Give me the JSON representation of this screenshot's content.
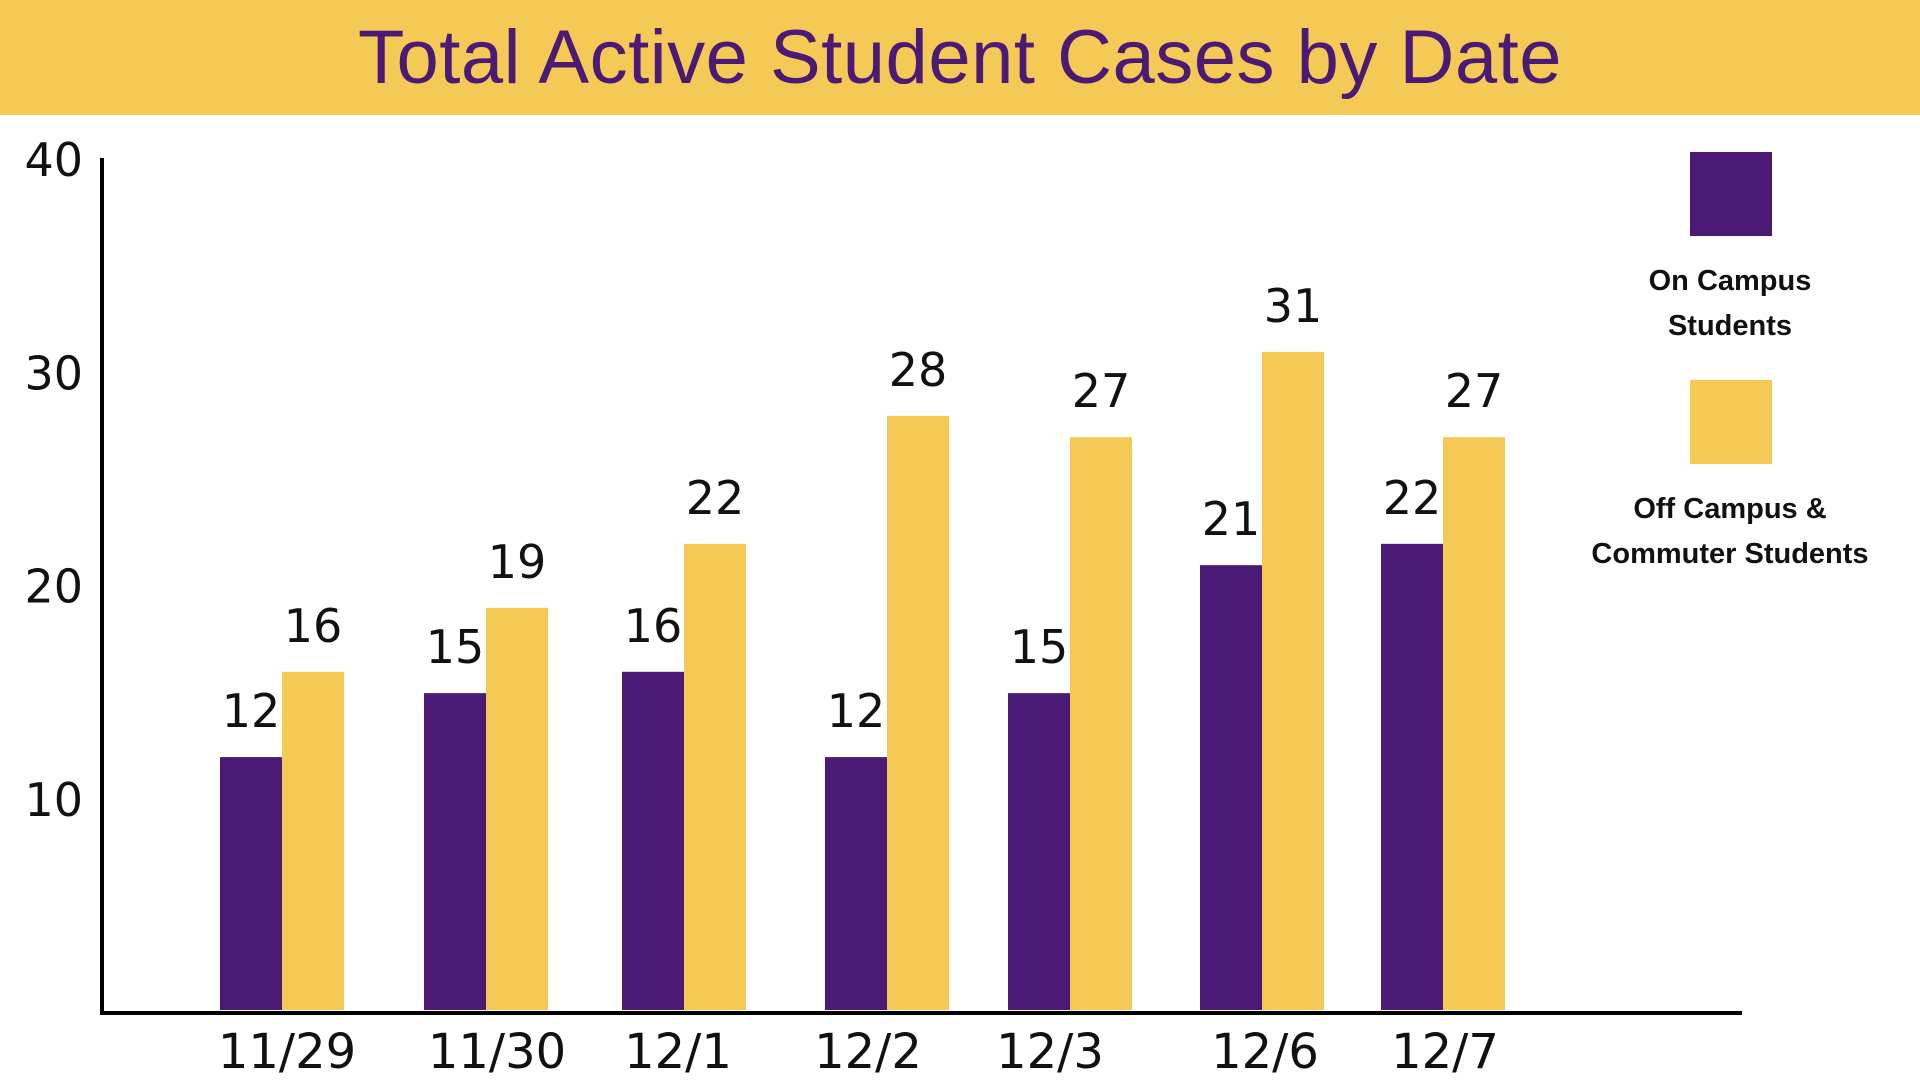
{
  "chart_data": {
    "type": "bar",
    "title": "Total Active Student Cases by Date",
    "categories": [
      "11/29",
      "11/30",
      "12/1",
      "12/2",
      "12/3",
      "12/6",
      "12/7"
    ],
    "series": [
      {
        "name": "On Campus Students",
        "values": [
          12,
          15,
          16,
          12,
          15,
          21,
          22
        ],
        "color": "#4b1a74"
      },
      {
        "name": "Off Campus & Commuter Students",
        "values": [
          16,
          19,
          22,
          28,
          27,
          31,
          27
        ],
        "color": "#f4c955"
      }
    ],
    "y_ticks": [
      10,
      20,
      30,
      40
    ],
    "ylim": [
      0,
      40
    ],
    "grid": false,
    "legend": {
      "position": "right",
      "entries": [
        {
          "lines": [
            "On Campus",
            "Students"
          ]
        },
        {
          "lines": [
            "Off Campus &",
            "Commuter Students"
          ]
        }
      ]
    }
  },
  "colors": {
    "title_band": "#f4c955",
    "title_text": "#4b1a74",
    "axis": "#000000"
  }
}
